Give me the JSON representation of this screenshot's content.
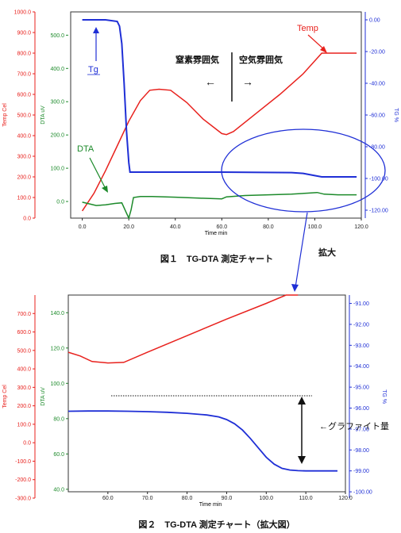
{
  "colors": {
    "temp": "#e8211d",
    "dta": "#1c8a2a",
    "tg": "#1f2fd6",
    "axis": "#222222",
    "frame": "#333333"
  },
  "chart_data": [
    {
      "type": "line",
      "xlabel": "Time min",
      "xlim": [
        -5,
        120
      ],
      "xticks": [
        "0.0",
        "20.0",
        "40.0",
        "60.0",
        "80.0",
        "100.0",
        "120.0"
      ],
      "axes": {
        "temp": {
          "label": "Temp Cel",
          "lim": [
            0,
            1000
          ],
          "ticks": [
            "0.0",
            "100.0",
            "200.0",
            "300.0",
            "400.0",
            "500.0",
            "600.0",
            "700.0",
            "800.0",
            "900.0",
            "1000.0"
          ]
        },
        "dta": {
          "label": "DTA uV",
          "lim": [
            -50,
            570
          ],
          "ticks": [
            "0.0",
            "100.0",
            "200.0",
            "300.0",
            "400.0",
            "500.0"
          ]
        },
        "tg": {
          "label": "TG %",
          "lim": [
            -125,
            5
          ],
          "ticks": [
            "0.00",
            "-20.00",
            "-40.00",
            "-60.00",
            "-80.00",
            "-100.00",
            "-120.00"
          ]
        }
      },
      "series": [
        {
          "name": "Temp",
          "axis": "temp",
          "x": [
            0,
            5,
            10,
            15,
            20,
            25,
            29,
            33,
            38,
            45,
            52,
            60,
            62,
            65,
            75,
            85,
            95,
            103,
            110,
            118
          ],
          "y": [
            35,
            120,
            230,
            350,
            470,
            570,
            620,
            625,
            620,
            560,
            480,
            410,
            405,
            420,
            510,
            600,
            700,
            800,
            800,
            800
          ]
        },
        {
          "name": "DTA",
          "axis": "dta",
          "x": [
            0,
            3,
            6,
            10,
            14,
            17,
            19,
            20,
            21,
            22,
            25,
            30,
            40,
            50,
            60,
            62,
            70,
            80,
            90,
            97,
            101,
            104,
            110,
            118
          ],
          "y": [
            -2,
            -7,
            -12,
            -10,
            -6,
            -4,
            -35,
            -58,
            -25,
            12,
            15,
            15,
            13,
            10,
            8,
            14,
            18,
            20,
            22,
            25,
            27,
            22,
            20,
            20
          ]
        },
        {
          "name": "Tg",
          "axis": "tg",
          "x": [
            0,
            10,
            15,
            16,
            17,
            18,
            19,
            20,
            20.5,
            21,
            30,
            60,
            90,
            95,
            100,
            103,
            110,
            118
          ],
          "y": [
            0,
            0,
            -1,
            -4,
            -15,
            -40,
            -70,
            -90,
            -96,
            -96,
            -96,
            -96,
            -96.3,
            -96.8,
            -98.2,
            -99,
            -99,
            -99
          ]
        }
      ],
      "annotations": {
        "temp_label": "Temp",
        "tg_label": "Tg",
        "dta_label": "DTA",
        "n2_label": "窒素雰囲気",
        "air_label": "空気雰囲気",
        "arrow_left": "←",
        "arrow_right": "→",
        "zoom_label": "拡大"
      },
      "caption": "図１　TG-DTA 測定チャート"
    },
    {
      "type": "line",
      "xlabel": "Time min",
      "xlim": [
        50,
        120
      ],
      "xticks": [
        "60.0",
        "70.0",
        "80.0",
        "90.0",
        "100.0",
        "110.0",
        "120.0"
      ],
      "axes": {
        "temp": {
          "label": "Temp Cel",
          "lim": [
            -300,
            800
          ],
          "ticks": [
            "-300.0",
            "-200.0",
            "-100.0",
            "0.0",
            "100.0",
            "200.0",
            "300.0",
            "400.0",
            "500.0",
            "600.0",
            "700.0"
          ]
        },
        "dta": {
          "label": "DTA uV",
          "lim": [
            35,
            150
          ],
          "ticks": [
            "40.0",
            "60.0",
            "80.0",
            "100.0",
            "120.0",
            "140.0"
          ]
        },
        "tg": {
          "label": "TG %",
          "lim": [
            -100.3,
            -90.6
          ],
          "ticks": [
            "-91.00",
            "-92.00",
            "-93.00",
            "-94.00",
            "-95.00",
            "-96.00",
            "-97.00",
            "-98.00",
            "-99.00",
            "-100.00"
          ]
        }
      },
      "series": [
        {
          "name": "Temp",
          "axis": "temp",
          "x": [
            50,
            53,
            56,
            60,
            64,
            70,
            80,
            90,
            100,
            105,
            108
          ],
          "y": [
            490,
            470,
            440,
            432,
            435,
            490,
            580,
            670,
            755,
            800,
            800
          ]
        },
        {
          "name": "Tg",
          "axis": "tg",
          "x": [
            50,
            55,
            60,
            65,
            70,
            75,
            80,
            85,
            88,
            90,
            92,
            94,
            96,
            98,
            100,
            102,
            104,
            106,
            108,
            110,
            112,
            115,
            118
          ],
          "y": [
            -96.15,
            -96.14,
            -96.14,
            -96.15,
            -96.17,
            -96.2,
            -96.25,
            -96.33,
            -96.42,
            -96.55,
            -96.75,
            -97.05,
            -97.45,
            -97.9,
            -98.35,
            -98.68,
            -98.88,
            -98.96,
            -98.99,
            -99.0,
            -99.0,
            -99.0,
            -99.0
          ]
        }
      ],
      "annotations": {
        "graphite_label": "←グラファイト量"
      },
      "caption": "図２　TG-DTA 測定チャート（拡大図）"
    }
  ]
}
